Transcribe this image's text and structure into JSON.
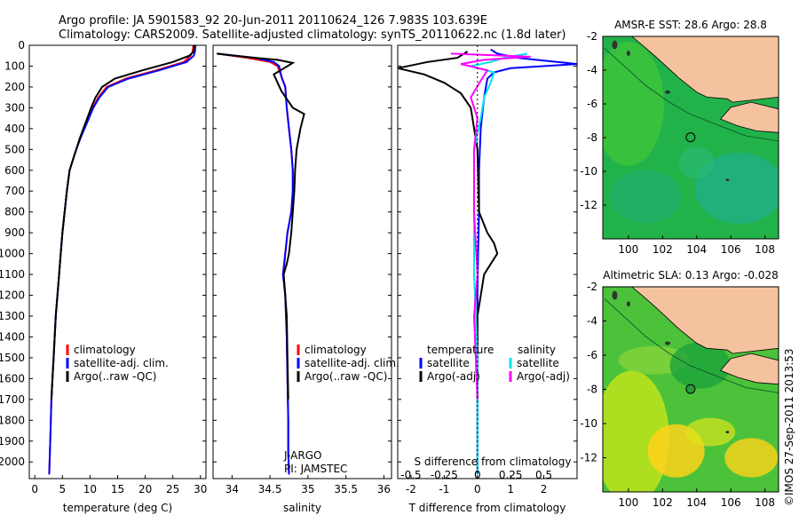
{
  "header": {
    "line1": "Argo profile: JA 5901583_92 20-Jun-2011 20110624_126 7.983S 103.639E",
    "line2": "Climatology: CARS2009. Satellite-adjusted climatology: synTS_20110622.nc (1.8d later)"
  },
  "colors": {
    "climatology": "#ff0000",
    "satellite": "#0000ff",
    "argo": "#000000",
    "sat_salinity": "#00e5ee",
    "argo_salinity": "#ff00ff",
    "land": "#f5c2a0",
    "ocean_warm": "#ffe600",
    "ocean_cool": "#00a86b"
  },
  "legend_tsal": {
    "items": [
      {
        "label": "climatology",
        "color": "#ff0000"
      },
      {
        "label": "satellite-adj. clim.",
        "color": "#0000ff"
      },
      {
        "label": "Argo(..raw -QC)",
        "color": "#000000"
      }
    ]
  },
  "legend_diff": {
    "t_title": "temperature",
    "s_title": "salinity",
    "t_items": [
      {
        "label": "satellite",
        "color": "#0000ff"
      },
      {
        "label": "Argo(-adj)",
        "color": "#000000"
      }
    ],
    "s_items": [
      {
        "label": "satellite",
        "color": "#00e5ee"
      },
      {
        "label": "Argo(-adj)",
        "color": "#ff00ff"
      }
    ]
  },
  "annotation_salinity": [
    "J-ARGO",
    "PI: JAMSTEC"
  ],
  "footer_credit": "©IMOS 27-Sep-2011 2013:53",
  "chart_data": [
    {
      "id": "temperature",
      "type": "line",
      "xlabel": "temperature (deg C)",
      "ylabel": "",
      "xlim": [
        -1,
        31
      ],
      "ylim": [
        2080,
        0
      ],
      "xticks": [
        0,
        5,
        10,
        15,
        20,
        25,
        30
      ],
      "xtick_labels": [
        "0",
        "5",
        "10",
        "15",
        "20",
        "25",
        "30"
      ],
      "yticks": [
        0,
        100,
        200,
        300,
        400,
        500,
        600,
        700,
        800,
        900,
        1000,
        1100,
        1200,
        1300,
        1400,
        1500,
        1600,
        1700,
        1800,
        1900,
        2000
      ],
      "series": [
        {
          "name": "climatology",
          "color": "#ff0000",
          "x": [
            28.7,
            28.6,
            28.2,
            27.0,
            22.0,
            16.5,
            13.0,
            11.5,
            10.5,
            9.7,
            8.9,
            8.2,
            7.5,
            6.9,
            6.3,
            5.8,
            5.0,
            4.7,
            4.4,
            4.1,
            3.8,
            3.6,
            3.4,
            3.2,
            3.0,
            2.8,
            2.6
          ],
          "y": [
            0,
            30,
            50,
            80,
            120,
            160,
            200,
            250,
            300,
            350,
            400,
            450,
            500,
            550,
            600,
            700,
            900,
            1000,
            1100,
            1200,
            1300,
            1400,
            1500,
            1600,
            1700,
            1900,
            2060
          ]
        },
        {
          "name": "satellite-adj. clim.",
          "color": "#0000ff",
          "x": [
            29.1,
            29.0,
            28.8,
            27.5,
            22.5,
            17.0,
            13.3,
            11.7,
            10.6,
            9.8,
            9.0,
            8.2,
            7.5,
            6.9,
            6.3,
            5.8,
            5.0,
            4.7,
            4.4,
            4.1,
            3.8,
            3.6,
            3.4,
            3.2,
            3.0,
            2.8,
            2.6
          ],
          "y": [
            0,
            30,
            50,
            80,
            120,
            160,
            200,
            250,
            300,
            350,
            400,
            450,
            500,
            550,
            600,
            700,
            900,
            1000,
            1100,
            1200,
            1300,
            1400,
            1500,
            1600,
            1700,
            1900,
            2060
          ]
        },
        {
          "name": "Argo(..raw -QC)",
          "color": "#000000",
          "x": [
            28.9,
            28.8,
            28.0,
            25.0,
            19.5,
            14.5,
            12.2,
            11.0,
            10.2,
            9.5,
            8.8,
            8.1,
            7.5,
            6.9,
            6.3,
            5.8,
            5.0,
            4.7,
            4.4,
            4.1,
            3.8,
            3.6,
            3.4,
            3.2,
            3.0
          ],
          "y": [
            0,
            30,
            50,
            80,
            120,
            160,
            200,
            250,
            300,
            350,
            400,
            450,
            500,
            550,
            600,
            700,
            900,
            1000,
            1100,
            1200,
            1300,
            1400,
            1500,
            1600,
            1700
          ]
        }
      ]
    },
    {
      "id": "salinity",
      "type": "line",
      "xlabel": "salinity",
      "xlim": [
        33.75,
        36.1
      ],
      "ylim": [
        2080,
        0
      ],
      "xticks": [
        34,
        34.5,
        35,
        35.5,
        36
      ],
      "xtick_labels": [
        "34",
        "34.5",
        "35",
        "35.5",
        "36"
      ],
      "yticks": [
        0,
        100,
        200,
        300,
        400,
        500,
        600,
        700,
        800,
        900,
        1000,
        1100,
        1200,
        1300,
        1400,
        1500,
        1600,
        1700,
        1800,
        1900,
        2000
      ],
      "series": [
        {
          "name": "climatology",
          "color": "#ff0000",
          "x": [
            33.8,
            34.2,
            34.5,
            34.6,
            34.65,
            34.7,
            34.72,
            34.75,
            34.78,
            34.8,
            34.8,
            34.78,
            34.73,
            34.7,
            34.68,
            34.7,
            34.72,
            34.73,
            34.74,
            34.74,
            34.75
          ],
          "y": [
            40,
            60,
            80,
            100,
            150,
            200,
            300,
            400,
            500,
            600,
            700,
            800,
            900,
            1000,
            1100,
            1200,
            1400,
            1600,
            1800,
            1950,
            2060
          ]
        },
        {
          "name": "satellite-adj. clim.",
          "color": "#0000ff",
          "x": [
            33.8,
            34.3,
            34.55,
            34.62,
            34.65,
            34.7,
            34.72,
            34.75,
            34.78,
            34.8,
            34.8,
            34.78,
            34.73,
            34.7,
            34.67,
            34.7,
            34.72,
            34.73,
            34.74,
            34.74,
            34.75
          ],
          "y": [
            40,
            60,
            80,
            100,
            150,
            200,
            300,
            400,
            500,
            600,
            700,
            800,
            900,
            1000,
            1100,
            1200,
            1400,
            1600,
            1800,
            1950,
            2060
          ]
        },
        {
          "name": "Argo(..raw -QC)",
          "color": "#000000",
          "x": [
            33.8,
            34.3,
            34.6,
            34.8,
            34.55,
            34.65,
            34.8,
            34.95,
            34.9,
            34.85,
            34.83,
            34.82,
            34.8,
            34.78,
            34.75,
            34.72,
            34.68,
            34.7,
            34.72,
            34.73,
            34.74
          ],
          "y": [
            40,
            60,
            70,
            85,
            140,
            220,
            300,
            330,
            400,
            500,
            600,
            700,
            800,
            900,
            1000,
            1050,
            1100,
            1200,
            1300,
            1500,
            1700
          ]
        }
      ]
    },
    {
      "id": "difference",
      "type": "line",
      "xlabel": "T difference from climatology",
      "xlabel_top": "S difference from climatology",
      "xlim": [
        -2.4,
        3.0
      ],
      "ylim": [
        2080,
        0
      ],
      "xticks": [
        -2,
        -1,
        0,
        1,
        2
      ],
      "xtick_labels": [
        "-2",
        "-1",
        "0",
        "1",
        "2"
      ],
      "s_ticks": [
        -2,
        -1,
        0,
        1,
        2
      ],
      "s_tick_labels": [
        "-0.5",
        "-0.25",
        "0",
        "0.25",
        "0.5"
      ],
      "yticks": [
        0,
        100,
        200,
        300,
        400,
        500,
        600,
        700,
        800,
        900,
        1000,
        1100,
        1200,
        1300,
        1400,
        1500,
        1600,
        1700,
        1800,
        1900,
        2000
      ],
      "series": [
        {
          "name": "T satellite",
          "color": "#0000ff",
          "x": [
            0.4,
            0.6,
            1.2,
            3.0,
            1.0,
            0.5,
            0.3,
            0.2,
            0.1,
            0.05,
            0.05,
            0.02,
            0.0,
            0.0,
            0.0,
            0.0
          ],
          "y": [
            20,
            40,
            60,
            90,
            110,
            130,
            160,
            250,
            400,
            600,
            800,
            1000,
            1200,
            1500,
            1800,
            2060
          ]
        },
        {
          "name": "T Argo(-adj)",
          "color": "#000000",
          "x": [
            -0.3,
            -0.6,
            -1.5,
            -2.4,
            -1.6,
            -1.0,
            -0.5,
            -0.2,
            0.0,
            0.05,
            0.3,
            0.5,
            0.6,
            0.4,
            0.2,
            0.0,
            0.0
          ],
          "y": [
            30,
            60,
            80,
            110,
            140,
            180,
            230,
            300,
            500,
            800,
            900,
            950,
            1000,
            1050,
            1100,
            1300,
            1700
          ]
        },
        {
          "name": "S satellite",
          "color": "#00e5ee",
          "x": [
            1.5,
            0.8,
            0.4,
            -0.2,
            0.5,
            0.4,
            0.2,
            0.1,
            -0.1,
            -0.1,
            -0.1,
            0.0,
            0.0
          ],
          "y": [
            40,
            60,
            80,
            100,
            130,
            180,
            250,
            350,
            500,
            800,
            1100,
            1500,
            2060
          ]
        },
        {
          "name": "S Argo(-adj)",
          "color": "#ff00ff",
          "x": [
            -0.8,
            1.6,
            0.2,
            -0.5,
            0.3,
            0.1,
            -0.2,
            0.0,
            -0.1,
            -0.1,
            0.0,
            -0.1,
            0.0
          ],
          "y": [
            40,
            55,
            70,
            90,
            120,
            170,
            250,
            350,
            500,
            800,
            1100,
            1300,
            1700
          ]
        }
      ]
    },
    {
      "id": "map_sst",
      "type": "heatmap",
      "title": "AMSR-E SST: 28.6 Argo: 28.8",
      "xlim": [
        98.5,
        108.8
      ],
      "ylim": [
        -14,
        -2
      ],
      "xticks": [
        100,
        102,
        104,
        106,
        108
      ],
      "xtick_labels": [
        "100",
        "102",
        "104",
        "106",
        "108"
      ],
      "yticks": [
        -2,
        -4,
        -6,
        -8,
        -10,
        -12
      ],
      "ytick_labels": [
        "-2",
        "-4",
        "-6",
        "-8",
        "-10",
        "-12"
      ],
      "argo_position": [
        103.64,
        -7.98
      ]
    },
    {
      "id": "map_sla",
      "type": "heatmap",
      "title": "Altimetric SLA: 0.13 Argo: -0.028",
      "xlim": [
        98.5,
        108.8
      ],
      "ylim": [
        -14,
        -2
      ],
      "xticks": [
        100,
        102,
        104,
        106,
        108
      ],
      "xtick_labels": [
        "100",
        "102",
        "104",
        "106",
        "108"
      ],
      "yticks": [
        -2,
        -4,
        -6,
        -8,
        -10,
        -12
      ],
      "ytick_labels": [
        "-2",
        "-4",
        "-6",
        "-8",
        "-10",
        "-12"
      ],
      "argo_position": [
        103.64,
        -7.98
      ]
    }
  ]
}
